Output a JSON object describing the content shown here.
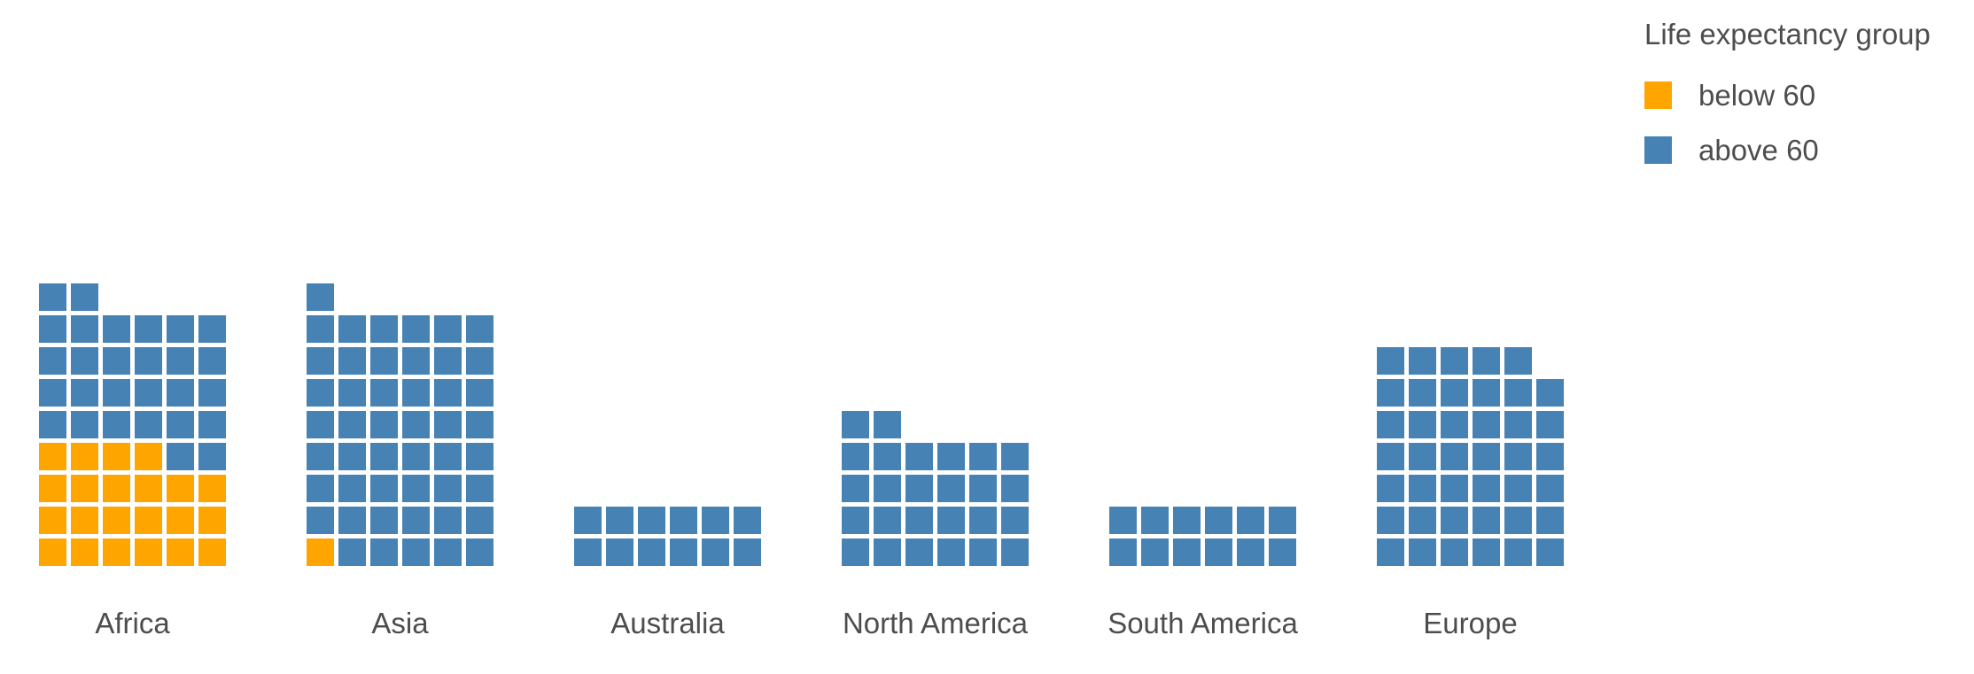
{
  "chart_data": {
    "type": "waffle",
    "title": "",
    "xlabel": "",
    "ylabel": "",
    "columns_per_category": 6,
    "categories": [
      "Africa",
      "Asia",
      "Australia",
      "North America",
      "South America",
      "Europe"
    ],
    "series": [
      {
        "name": "below 60",
        "color": "#ffa500",
        "values": [
          22,
          1,
          0,
          0,
          0,
          0
        ]
      },
      {
        "name": "above 60",
        "color": "#4682b4",
        "values": [
          28,
          48,
          12,
          26,
          12,
          41
        ]
      }
    ],
    "legend": {
      "title": "Life expectancy group",
      "position": "top-right",
      "entries": [
        {
          "label": "below 60",
          "color": "#ffa500"
        },
        {
          "label": "above 60",
          "color": "#4682b4"
        }
      ]
    },
    "grid": false
  }
}
